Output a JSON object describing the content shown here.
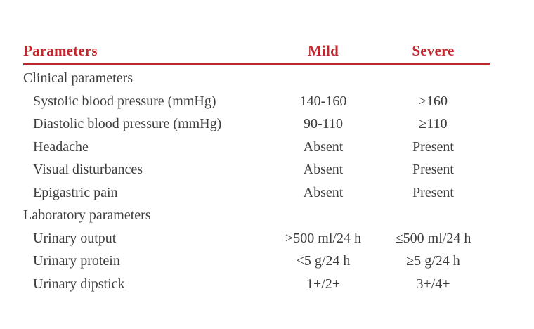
{
  "table": {
    "accent_color": "#c2262d",
    "text_color": "#3d3d3d",
    "columns": [
      "Parameters",
      "Mild",
      "Severe"
    ],
    "rows": [
      {
        "type": "section",
        "label": "Clinical parameters",
        "mild": "",
        "severe": ""
      },
      {
        "type": "data",
        "label": "Systolic blood pressure (mmHg)",
        "mild": "140-160",
        "severe": "≥160"
      },
      {
        "type": "data",
        "label": "Diastolic blood pressure (mmHg)",
        "mild": "90-110",
        "severe": "≥110"
      },
      {
        "type": "data",
        "label": "Headache",
        "mild": "Absent",
        "severe": "Present"
      },
      {
        "type": "data",
        "label": "Visual disturbances",
        "mild": "Absent",
        "severe": "Present"
      },
      {
        "type": "data",
        "label": "Epigastric pain",
        "mild": "Absent",
        "severe": "Present"
      },
      {
        "type": "section",
        "label": "Laboratory parameters",
        "mild": "",
        "severe": ""
      },
      {
        "type": "data",
        "label": "Urinary output",
        "mild": ">500 ml/24 h",
        "severe": "≤500 ml/24 h"
      },
      {
        "type": "data",
        "label": "Urinary protein",
        "mild": "<5 g/24 h",
        "severe": "≥5 g/24 h"
      },
      {
        "type": "data",
        "label": "Urinary dipstick",
        "mild": "1+/2+",
        "severe": "3+/4+"
      }
    ]
  }
}
